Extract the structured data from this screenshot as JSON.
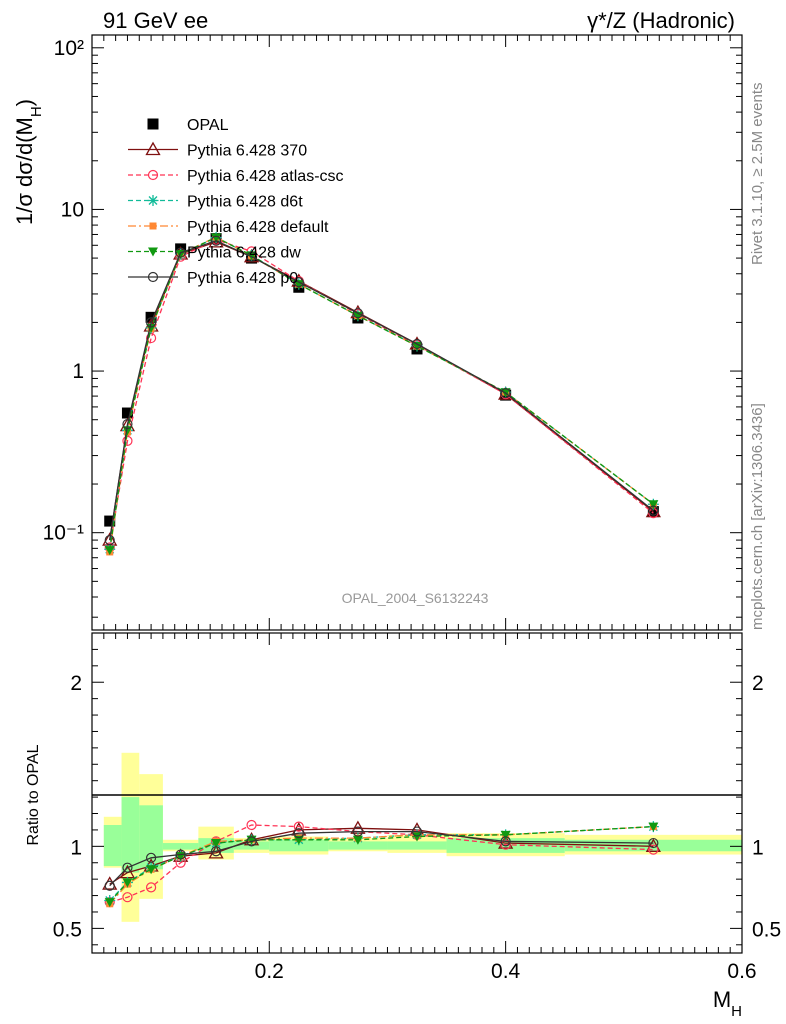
{
  "header": {
    "left_title": "91 GeV ee",
    "right_title": "γ*/Z (Hadronic)"
  },
  "side_labels": {
    "rivet": "Rivet 3.1.10, ≥ 2.5M events",
    "mcplots": "mcplots.cern.ch [arXiv:1306.3436]"
  },
  "watermark": "OPAL_2004_S6132243",
  "chart_data": [
    {
      "type": "line",
      "panel": "main",
      "ylabel": "1/σ dσ/d(M_H)",
      "yscale": "log",
      "ylim": [
        0.025,
        120
      ],
      "xlim": [
        0.05,
        0.6
      ],
      "yticks_major": [
        0.1,
        1,
        10,
        100
      ],
      "ytick_labels": [
        "10⁻¹",
        "1",
        "10",
        "10²"
      ],
      "legend_position": "upper-left",
      "x": [
        0.065,
        0.08,
        0.1,
        0.125,
        0.155,
        0.185,
        0.225,
        0.275,
        0.325,
        0.4,
        0.525
      ],
      "series": [
        {
          "name": "OPAL",
          "color": "#000000",
          "marker": "square-filled",
          "line": "none",
          "values": [
            0.118,
            0.55,
            2.15,
            5.7,
            6.6,
            5.0,
            3.3,
            2.13,
            1.37,
            0.71,
            0.135
          ]
        },
        {
          "name": "Pythia 6.428 370",
          "color": "#7f1010",
          "marker": "triangle-open",
          "line": "solid",
          "values": [
            0.09,
            0.46,
            1.9,
            5.3,
            6.3,
            5.1,
            3.6,
            2.3,
            1.47,
            0.72,
            0.135
          ]
        },
        {
          "name": "Pythia 6.428 atlas-csc",
          "color": "#ff3355",
          "marker": "circle-open",
          "line": "dashed",
          "values": [
            0.081,
            0.37,
            1.6,
            5.1,
            6.5,
            5.5,
            3.6,
            2.25,
            1.45,
            0.72,
            0.132
          ]
        },
        {
          "name": "Pythia 6.428 d6t",
          "color": "#11bb99",
          "marker": "star",
          "line": "dashed",
          "values": [
            0.079,
            0.43,
            1.85,
            5.3,
            6.7,
            5.2,
            3.45,
            2.2,
            1.43,
            0.74,
            0.15
          ]
        },
        {
          "name": "Pythia 6.428 default",
          "color": "#ff8833",
          "marker": "square-filled-small",
          "line": "dashdot",
          "values": [
            0.076,
            0.42,
            1.83,
            5.3,
            6.75,
            5.15,
            3.45,
            2.2,
            1.43,
            0.74,
            0.15
          ]
        },
        {
          "name": "Pythia 6.428 dw",
          "color": "#119911",
          "marker": "triangle-down-filled",
          "line": "dashed",
          "values": [
            0.078,
            0.43,
            1.85,
            5.3,
            6.7,
            5.2,
            3.45,
            2.2,
            1.43,
            0.74,
            0.15
          ]
        },
        {
          "name": "Pythia 6.428 p0",
          "color": "#333333",
          "marker": "circle-open",
          "line": "solid",
          "values": [
            0.09,
            0.47,
            2.0,
            5.4,
            6.4,
            5.1,
            3.55,
            2.28,
            1.47,
            0.73,
            0.137
          ]
        }
      ]
    },
    {
      "type": "line",
      "panel": "ratio",
      "ylabel": "Ratio to OPAL",
      "xlabel": "M_H",
      "ylim": [
        0.35,
        2.3
      ],
      "xlim": [
        0.05,
        0.6
      ],
      "yticks_major": [
        0.5,
        1,
        2
      ],
      "ytick_labels": [
        "0.5",
        "1",
        "2"
      ],
      "xticks_major": [
        0.2,
        0.4,
        0.6
      ],
      "xtick_labels": [
        "0.2",
        "0.4",
        "0.6"
      ],
      "bands": {
        "bins": [
          [
            0.06,
            0.075
          ],
          [
            0.075,
            0.09
          ],
          [
            0.09,
            0.11
          ],
          [
            0.11,
            0.14
          ],
          [
            0.14,
            0.17
          ],
          [
            0.17,
            0.2
          ],
          [
            0.2,
            0.25
          ],
          [
            0.25,
            0.3
          ],
          [
            0.3,
            0.35
          ],
          [
            0.35,
            0.45
          ],
          [
            0.45,
            0.6
          ]
        ],
        "stat_low": [
          0.88,
          0.84,
          0.86,
          0.98,
          0.96,
          0.98,
          0.97,
          0.98,
          0.98,
          0.96,
          0.97
        ],
        "stat_high": [
          1.13,
          1.3,
          1.25,
          1.02,
          1.05,
          1.03,
          1.04,
          1.03,
          1.03,
          1.05,
          1.04
        ],
        "total_low": [
          0.87,
          0.54,
          0.68,
          0.97,
          0.92,
          0.96,
          0.95,
          0.97,
          0.96,
          0.94,
          0.95
        ],
        "total_high": [
          1.18,
          1.57,
          1.44,
          1.04,
          1.12,
          1.05,
          1.06,
          1.05,
          1.07,
          1.08,
          1.07
        ],
        "stat_color": "#99ff99",
        "total_color": "#ffff99"
      },
      "x": [
        0.065,
        0.08,
        0.1,
        0.125,
        0.155,
        0.185,
        0.225,
        0.275,
        0.325,
        0.4,
        0.525
      ],
      "series": [
        {
          "name": "Pythia 6.428 370",
          "color": "#7f1010",
          "marker": "triangle-open",
          "line": "solid",
          "values": [
            0.77,
            0.84,
            0.88,
            0.94,
            0.96,
            1.04,
            1.1,
            1.11,
            1.1,
            1.02,
            1.0
          ]
        },
        {
          "name": "Pythia 6.428 atlas-csc",
          "color": "#ff3355",
          "marker": "circle-open",
          "line": "dashed",
          "values": [
            0.66,
            0.69,
            0.75,
            0.9,
            1.03,
            1.13,
            1.12,
            1.09,
            1.07,
            1.01,
            0.98
          ]
        },
        {
          "name": "Pythia 6.428 d6t",
          "color": "#11bb99",
          "marker": "star",
          "line": "dashed",
          "values": [
            0.67,
            0.78,
            0.87,
            0.94,
            1.02,
            1.04,
            1.04,
            1.05,
            1.07,
            1.07,
            1.12
          ]
        },
        {
          "name": "Pythia 6.428 default",
          "color": "#ff8833",
          "marker": "square-filled-small",
          "line": "dashdot",
          "values": [
            0.65,
            0.77,
            0.86,
            0.94,
            1.03,
            1.04,
            1.05,
            1.05,
            1.07,
            1.07,
            1.12
          ]
        },
        {
          "name": "Pythia 6.428 dw",
          "color": "#119911",
          "marker": "triangle-down-filled",
          "line": "dashed",
          "values": [
            0.66,
            0.78,
            0.86,
            0.94,
            1.02,
            1.04,
            1.04,
            1.04,
            1.06,
            1.07,
            1.12
          ]
        },
        {
          "name": "Pythia 6.428 p0",
          "color": "#333333",
          "marker": "circle-open",
          "line": "solid",
          "values": [
            0.76,
            0.87,
            0.93,
            0.95,
            0.97,
            1.03,
            1.08,
            1.09,
            1.09,
            1.03,
            1.02
          ]
        }
      ]
    }
  ]
}
